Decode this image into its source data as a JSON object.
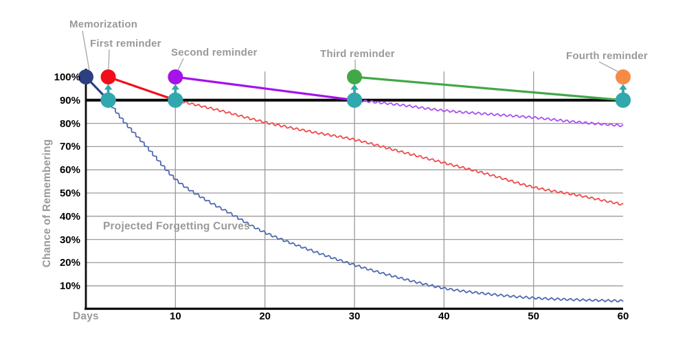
{
  "chart_data": {
    "type": "line",
    "title": "Projected Forgetting Curves",
    "xlabel": "Days",
    "ylabel": "Chance of Remembering",
    "xlim": [
      0,
      60
    ],
    "ylim": [
      0,
      100
    ],
    "x_ticks": [
      10,
      20,
      30,
      40,
      50,
      60
    ],
    "y_ticks": [
      {
        "label": "100%",
        "value": 100
      },
      {
        "label": "90%",
        "value": 90
      },
      {
        "label": "80%",
        "value": 80
      },
      {
        "label": "70%",
        "value": 70
      },
      {
        "label": "60%",
        "value": 60
      },
      {
        "label": "50%",
        "value": 50
      },
      {
        "label": "40%",
        "value": 40
      },
      {
        "label": "30%",
        "value": 30
      },
      {
        "label": "20%",
        "value": 20
      },
      {
        "label": "10%",
        "value": 10
      }
    ],
    "grid": true,
    "grid_color": "#9a9a9a",
    "axis_color": "#0b0b0b",
    "tick_label_color": "#000000",
    "annotation_color": "#999999",
    "pointer_line_color": "#ababab",
    "review_threshold": 90,
    "review_threshold_color": "#0b0b0b",
    "review_marker_color": "#31A8AE",
    "review_markers": [
      {
        "day": 2.5,
        "pct": 90
      },
      {
        "day": 10,
        "pct": 90
      },
      {
        "day": 30,
        "pct": 90
      },
      {
        "day": 60,
        "pct": 90
      }
    ],
    "events": [
      {
        "label": "Memorization",
        "day": 0,
        "pct": 100,
        "color": "#2C3F7E",
        "decay_to_day": 2.5,
        "projection_color": "#5069AE",
        "projection": [
          [
            2.5,
            90
          ],
          [
            4,
            82
          ],
          [
            7,
            69
          ],
          [
            10,
            56
          ],
          [
            13,
            48
          ],
          [
            16,
            41.5
          ],
          [
            20,
            33
          ],
          [
            25,
            25.5
          ],
          [
            30,
            19
          ],
          [
            35,
            13.5
          ],
          [
            40,
            9
          ],
          [
            45,
            6.5
          ],
          [
            50,
            4.8
          ],
          [
            55,
            4
          ],
          [
            60,
            3.5
          ]
        ]
      },
      {
        "label": "First reminder",
        "day": 2.5,
        "pct": 100,
        "color": "#F20D1B",
        "decay_to_day": 10,
        "projection_color": "#EF4A4A",
        "projection": [
          [
            10,
            90
          ],
          [
            15,
            85.5
          ],
          [
            20,
            80.5
          ],
          [
            25,
            76.5
          ],
          [
            30,
            73
          ],
          [
            35,
            68
          ],
          [
            40,
            63
          ],
          [
            45,
            58
          ],
          [
            50,
            52.5
          ],
          [
            55,
            49
          ],
          [
            60,
            45
          ]
        ]
      },
      {
        "label": "Second reminder",
        "day": 10,
        "pct": 100,
        "color": "#A512EA",
        "decay_to_day": 30,
        "projection_color": "#A94FF2",
        "projection": [
          [
            30,
            90
          ],
          [
            35,
            88
          ],
          [
            40,
            85.5
          ],
          [
            45,
            84
          ],
          [
            50,
            82.5
          ],
          [
            55,
            80.5
          ],
          [
            60,
            79
          ]
        ]
      },
      {
        "label": "Third reminder",
        "day": 30,
        "pct": 100,
        "color": "#41A848",
        "decay_to_day": 60,
        "projection_color": null,
        "projection": []
      },
      {
        "label": "Fourth reminder",
        "day": 60,
        "pct": 100,
        "color": "#F68B45",
        "decay_to_day": null,
        "projection_color": null,
        "projection": []
      }
    ]
  }
}
